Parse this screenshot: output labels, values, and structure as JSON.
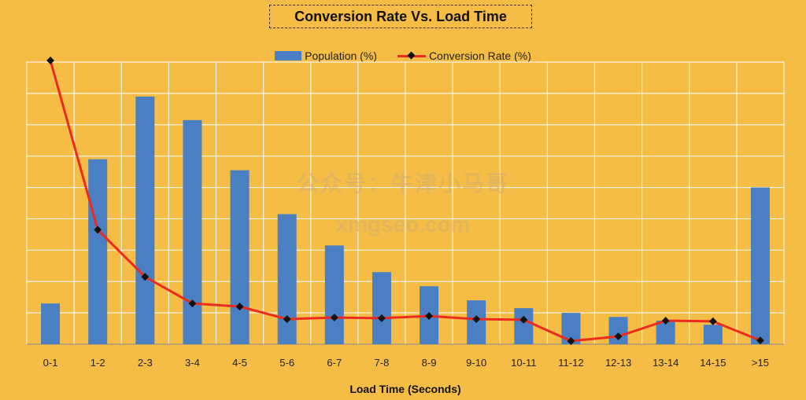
{
  "chart_data": {
    "type": "bar",
    "title": "Conversion Rate Vs. Load Time",
    "xlabel": "Load Time (Seconds)",
    "ylabel": "",
    "categories": [
      "0-1",
      "1-2",
      "2-3",
      "3-4",
      "4-5",
      "5-6",
      "6-7",
      "7-8",
      "8-9",
      "9-10",
      "10-11",
      "11-12",
      "12-13",
      "13-14",
      "14-15",
      ">15"
    ],
    "ylim": [
      0,
      9
    ],
    "grid": true,
    "legend_placement": "top-center",
    "series": [
      {
        "name": "Population (%)",
        "type": "bar",
        "values": [
          1.3,
          5.9,
          7.9,
          7.15,
          5.55,
          4.15,
          3.15,
          2.3,
          1.85,
          1.4,
          1.15,
          1.0,
          0.87,
          0.75,
          0.62,
          5.0
        ]
      },
      {
        "name": "Conversion Rate (%)",
        "type": "line",
        "values": [
          9.05,
          3.65,
          2.15,
          1.3,
          1.2,
          0.8,
          0.85,
          0.83,
          0.9,
          0.8,
          0.78,
          0.1,
          0.25,
          0.75,
          0.73,
          0.12
        ]
      }
    ],
    "colors": {
      "bar": "#4a7fc1",
      "line": "#ee2a1f",
      "marker": "#111111",
      "grid": "#ffffff",
      "background": "#f5bd45"
    }
  },
  "watermark": {
    "line1": "公众号：牛津小马哥",
    "line2": "xmgseo.com"
  }
}
